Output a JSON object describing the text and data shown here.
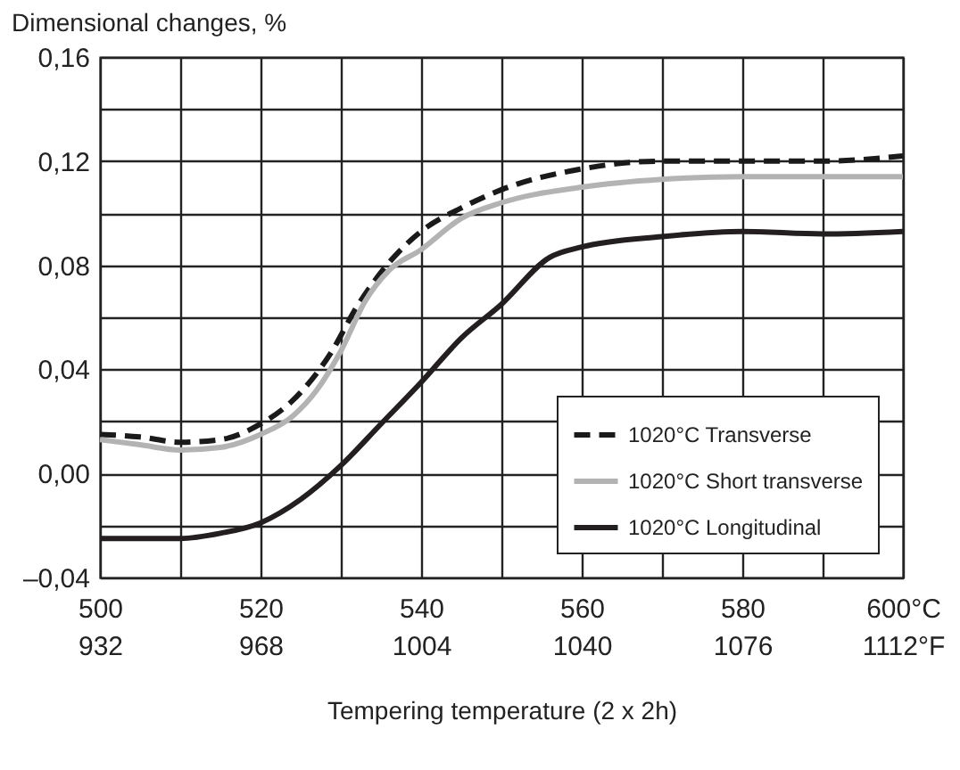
{
  "chart_data": {
    "type": "line",
    "ylabel": "Dimensional changes, %",
    "xlabel": "Tempering temperature (2 x 2h)",
    "xlim": [
      500,
      600
    ],
    "xticks": [
      500,
      {
        "value": 510,
        "label": null
      },
      520,
      {
        "value": 530,
        "label": null
      },
      540,
      {
        "value": 550,
        "label": null
      },
      560,
      {
        "value": 570,
        "label": null
      },
      580,
      {
        "value": 590,
        "label": null
      },
      {
        "value": 600,
        "label": "600°C"
      }
    ],
    "x2lim": [
      932,
      1112
    ],
    "x2ticks": [
      932,
      968,
      1004,
      1040,
      1076,
      {
        "value": 1112,
        "label": "1112°F"
      }
    ],
    "ylim": [
      -0.04,
      0.16
    ],
    "yticks": [
      {
        "value": -0.04,
        "label": "–0,04"
      },
      {
        "value": -0.02,
        "label": null
      },
      {
        "value": 0,
        "label": "0,00"
      },
      {
        "value": 0.02,
        "label": null
      },
      {
        "value": 0.04,
        "label": "0,04"
      },
      {
        "value": 0.06,
        "label": null
      },
      {
        "value": 0.08,
        "label": "0,08"
      },
      {
        "value": 0.1,
        "label": null
      },
      {
        "value": 0.12,
        "label": "0,12"
      },
      {
        "value": 0.14,
        "label": null
      },
      {
        "value": 0.16,
        "label": "0,16"
      }
    ],
    "grid": true,
    "legend": "bottom right",
    "series": [
      {
        "name": "1020°C Transverse",
        "color": "#1a1a1a",
        "line_style": "dashed",
        "x": [
          500,
          505,
          510,
          515,
          520,
          524,
          528.7,
          532,
          536,
          540,
          545,
          550,
          560,
          570,
          580,
          590,
          600
        ],
        "values": [
          0.015,
          0.014,
          0.012,
          0.013,
          0.019,
          0.028,
          0.046,
          0.064,
          0.081,
          0.093,
          0.102,
          0.109,
          0.117,
          0.12,
          0.12,
          0.12,
          0.122
        ]
      },
      {
        "name": "1020°C Short transverse",
        "color": "#b3b3b3",
        "line_style": "solid",
        "x": [
          500,
          505,
          510,
          515,
          520,
          524,
          527,
          530,
          533,
          536,
          540,
          545,
          550,
          560,
          570,
          580,
          590,
          600
        ],
        "values": [
          0.013,
          0.011,
          0.009,
          0.01,
          0.015,
          0.022,
          0.032,
          0.047,
          0.066,
          0.078,
          0.086,
          0.098,
          0.104,
          0.11,
          0.113,
          0.114,
          0.114,
          0.114
        ]
      },
      {
        "name": "1020°C Longitudinal",
        "color": "#231f20",
        "line_style": "solid",
        "x": [
          500,
          505,
          510,
          515,
          520,
          525,
          530,
          535,
          540,
          545,
          550,
          556,
          560,
          570,
          580,
          590,
          600
        ],
        "values": [
          -0.025,
          -0.025,
          -0.025,
          -0.023,
          -0.019,
          -0.01,
          0.003,
          0.019,
          0.035,
          0.052,
          0.065,
          0.083,
          0.087,
          0.091,
          0.093,
          0.092,
          0.093
        ]
      }
    ]
  }
}
